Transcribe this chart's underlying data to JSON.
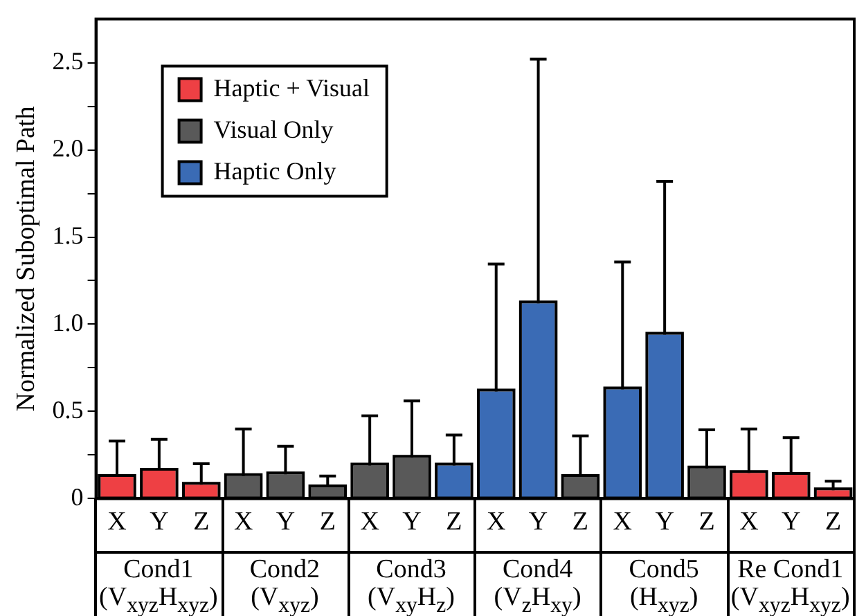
{
  "chart_data": {
    "type": "bar",
    "ylabel": "Normalized Suboptimal Path",
    "categories": [
      "X",
      "Y",
      "Z",
      "X",
      "Y",
      "Z",
      "X",
      "Y",
      "Z",
      "X",
      "Y",
      "Z",
      "X",
      "Y",
      "Z",
      "X",
      "Y",
      "Z"
    ],
    "annotations": [
      "Cond1 (V$_{xyz}$H$_{xyz}$)",
      "Cond2 (V$_{xyz}$)",
      "Cond3 (V$_{xy}$H$_{z}$)",
      "Cond4 (V$_{z}$H$_{xy}$)",
      "Cond5 (H$_{xyz}$)",
      "Re Cond1 (V$_{xyz}$H$_{xyz}$)"
    ],
    "series": [
      {
        "name": "Haptic + Visual",
        "color": "#ee4044",
        "values": [
          0.125,
          0.16,
          0.08,
          null,
          null,
          null,
          null,
          null,
          null,
          null,
          null,
          null,
          null,
          null,
          null,
          0.147,
          0.137,
          0.048
        ],
        "errors": [
          [
            0.125,
            0.33
          ],
          [
            0.16,
            0.34
          ],
          [
            0.08,
            0.2
          ],
          null,
          null,
          null,
          null,
          null,
          null,
          null,
          null,
          null,
          null,
          null,
          null,
          [
            0.147,
            0.4
          ],
          [
            0.137,
            0.35
          ],
          [
            0.048,
            0.1
          ]
        ]
      },
      {
        "name": "Visual Only",
        "color": "#595959",
        "values": [
          null,
          null,
          null,
          0.13,
          0.14,
          0.065,
          0.19,
          0.235,
          null,
          null,
          null,
          0.125,
          null,
          null,
          0.173,
          null,
          null,
          null
        ],
        "errors": [
          null,
          null,
          null,
          [
            0.13,
            0.4
          ],
          [
            0.14,
            0.3
          ],
          [
            0.065,
            0.13
          ],
          [
            0.19,
            0.475
          ],
          [
            0.235,
            0.56
          ],
          null,
          null,
          null,
          [
            0.125,
            0.36
          ],
          null,
          null,
          [
            0.173,
            0.395
          ],
          null,
          null,
          null
        ]
      },
      {
        "name": "Haptic Only",
        "color": "#3a6bb5",
        "values": [
          null,
          null,
          null,
          null,
          null,
          null,
          null,
          null,
          0.19,
          0.615,
          1.12,
          null,
          0.627,
          0.94,
          null,
          null,
          null,
          null
        ],
        "errors": [
          null,
          null,
          null,
          null,
          null,
          null,
          null,
          null,
          [
            0.19,
            0.365
          ],
          [
            0.615,
            1.345
          ],
          [
            1.12,
            2.52
          ],
          null,
          [
            0.627,
            1.357
          ],
          [
            0.94,
            1.82
          ],
          null,
          null,
          null,
          null
        ]
      }
    ],
    "ylim": [
      0,
      2.75
    ],
    "yticks": [
      0,
      {
        "value": 0.25,
        "label": null
      },
      0.5,
      {
        "value": 0.75,
        "label": null
      },
      {
        "value": 1,
        "label": "1.0"
      },
      {
        "value": 1.25,
        "label": null
      },
      1.5,
      {
        "value": 1.75,
        "label": null
      },
      {
        "value": 2,
        "label": "2.0"
      },
      {
        "value": 2.25,
        "label": null
      },
      2.5
    ],
    "grid": false,
    "legend": "top left"
  }
}
